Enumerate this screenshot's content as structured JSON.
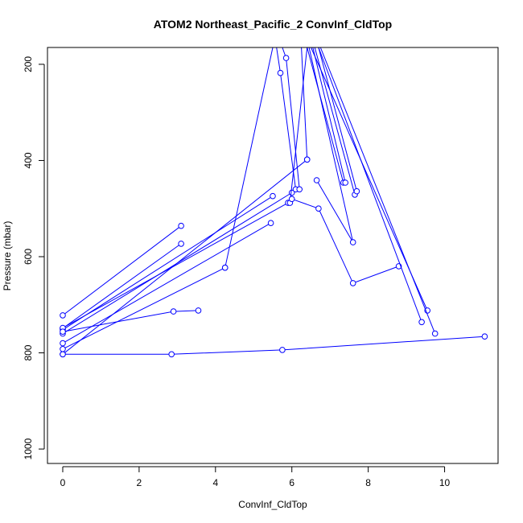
{
  "chart_data": {
    "type": "line",
    "title": "ATOM2 Northeast_Pacific_2 ConvInf_CldTop",
    "xlabel": "ConvInf_CldTop",
    "ylabel": "Pressure (mbar)",
    "xlim": [
      -0.4,
      11.4
    ],
    "ylim": [
      1030,
      165
    ],
    "y_reversed": true,
    "x_ticks": [
      0,
      2,
      4,
      6,
      8,
      10
    ],
    "y_ticks": [
      200,
      400,
      600,
      800,
      1000
    ],
    "grid": false,
    "legend": "none",
    "colors": {
      "series": "#0000ff",
      "axes": "#000000"
    },
    "markers": "open-circle",
    "series": [
      {
        "x": [
          0,
          3.1
        ],
        "y": [
          722,
          536
        ]
      },
      {
        "x": [
          0,
          3.1
        ],
        "y": [
          749,
          573
        ]
      },
      {
        "x": [
          0,
          5.5
        ],
        "y": [
          752,
          474
        ]
      },
      {
        "x": [
          0,
          6.0
        ],
        "y": [
          760,
          467
        ]
      },
      {
        "x": [
          0,
          5.9
        ],
        "y": [
          748,
          488
        ]
      },
      {
        "x": [
          0,
          5.45
        ],
        "y": [
          780,
          530
        ]
      },
      {
        "x": [
          0,
          4.25
        ],
        "y": [
          792,
          623
        ]
      },
      {
        "x": [
          0,
          6.4
        ],
        "y": [
          803,
          398
        ]
      },
      {
        "x": [
          0,
          2.9,
          3.55
        ],
        "y": [
          756,
          714,
          712
        ]
      },
      {
        "x": [
          0,
          2.85,
          5.75,
          11.05
        ],
        "y": [
          803,
          803,
          794,
          766
        ]
      },
      {
        "x": [
          4.25,
          5.5
        ],
        "y": [
          623,
          165
        ]
      },
      {
        "x": [
          6.1,
          5.7,
          5.6
        ],
        "y": [
          460,
          218,
          165
        ]
      },
      {
        "x": [
          6.2,
          5.85,
          5.75
        ],
        "y": [
          460,
          187,
          165
        ]
      },
      {
        "x": [
          6.4,
          6.25
        ],
        "y": [
          398,
          165
        ]
      },
      {
        "x": [
          5.95,
          6.4
        ],
        "y": [
          488,
          165
        ]
      },
      {
        "x": [
          6.0,
          6.7,
          7.6,
          8.8
        ],
        "y": [
          480,
          500,
          655,
          620
        ]
      },
      {
        "x": [
          6.65,
          7.6,
          6.45
        ],
        "y": [
          441,
          570,
          165
        ]
      },
      {
        "x": [
          7.35,
          6.4
        ],
        "y": [
          446,
          165
        ]
      },
      {
        "x": [
          7.4,
          6.55
        ],
        "y": [
          446,
          165
        ]
      },
      {
        "x": [
          7.65,
          6.6
        ],
        "y": [
          471,
          165
        ]
      },
      {
        "x": [
          7.7,
          6.7
        ],
        "y": [
          464,
          165
        ]
      },
      {
        "x": [
          9.55,
          6.5
        ],
        "y": [
          712,
          165
        ]
      },
      {
        "x": [
          9.4,
          6.7
        ],
        "y": [
          736,
          165
        ]
      },
      {
        "x": [
          9.75,
          6.75
        ],
        "y": [
          760,
          165
        ]
      }
    ]
  }
}
